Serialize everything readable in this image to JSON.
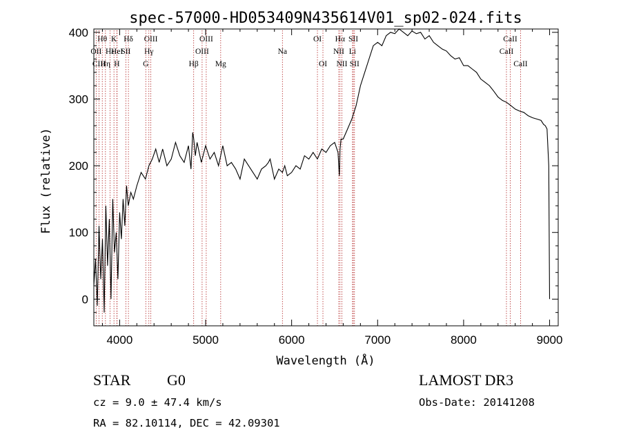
{
  "chart_data": {
    "type": "line",
    "title": "spec-57000-HD053409N435614V01_sp02-024.fits",
    "xlabel": "Wavelength (Å)",
    "ylabel": "Flux (relative)",
    "xlim": [
      3700,
      9100
    ],
    "ylim": [
      -40,
      405
    ],
    "xticks": [
      4000,
      5000,
      6000,
      7000,
      8000,
      9000
    ],
    "yticks": [
      0,
      100,
      200,
      300,
      400
    ],
    "colors": {
      "spectrum": "#000000",
      "lines": "#b22222"
    },
    "series": [
      {
        "name": "flux",
        "x": [
          3700,
          3720,
          3740,
          3760,
          3780,
          3800,
          3820,
          3840,
          3860,
          3880,
          3900,
          3920,
          3940,
          3960,
          3980,
          4000,
          4020,
          4040,
          4060,
          4080,
          4100,
          4130,
          4160,
          4200,
          4250,
          4300,
          4340,
          4380,
          4420,
          4460,
          4500,
          4550,
          4600,
          4650,
          4700,
          4750,
          4800,
          4830,
          4850,
          4862,
          4880,
          4900,
          4950,
          5000,
          5050,
          5100,
          5150,
          5200,
          5250,
          5300,
          5350,
          5400,
          5450,
          5500,
          5550,
          5600,
          5650,
          5700,
          5730,
          5750,
          5800,
          5850,
          5893,
          5920,
          5950,
          6000,
          6050,
          6100,
          6150,
          6200,
          6250,
          6300,
          6350,
          6400,
          6450,
          6500,
          6540,
          6555,
          6563,
          6575,
          6600,
          6650,
          6700,
          6750,
          6800,
          6850,
          6900,
          6950,
          7000,
          7050,
          7100,
          7150,
          7200,
          7250,
          7300,
          7350,
          7400,
          7450,
          7500,
          7550,
          7600,
          7650,
          7700,
          7750,
          7800,
          7850,
          7900,
          7950,
          8000,
          8050,
          8100,
          8150,
          8200,
          8250,
          8300,
          8350,
          8400,
          8450,
          8500,
          8550,
          8600,
          8650,
          8700,
          8750,
          8800,
          8850,
          8900,
          8930,
          8950,
          8970,
          8990,
          9000
        ],
        "y": [
          20,
          60,
          -10,
          110,
          30,
          90,
          -20,
          140,
          50,
          120,
          0,
          150,
          70,
          100,
          30,
          130,
          90,
          150,
          110,
          170,
          140,
          160,
          150,
          170,
          190,
          180,
          200,
          210,
          225,
          205,
          225,
          200,
          210,
          235,
          215,
          205,
          230,
          195,
          250,
          240,
          215,
          235,
          205,
          230,
          210,
          220,
          200,
          230,
          200,
          205,
          195,
          180,
          210,
          200,
          190,
          180,
          195,
          200,
          205,
          210,
          180,
          195,
          190,
          200,
          185,
          190,
          200,
          195,
          215,
          210,
          220,
          210,
          225,
          220,
          230,
          235,
          220,
          185,
          225,
          240,
          240,
          255,
          270,
          290,
          320,
          340,
          360,
          380,
          385,
          380,
          395,
          400,
          398,
          405,
          400,
          395,
          402,
          398,
          400,
          390,
          395,
          385,
          380,
          375,
          372,
          365,
          360,
          362,
          350,
          350,
          345,
          340,
          330,
          325,
          320,
          312,
          303,
          298,
          295,
          290,
          285,
          282,
          280,
          275,
          272,
          270,
          268,
          262,
          260,
          255,
          200,
          0
        ]
      }
    ],
    "lines": [
      {
        "name": "Hθ",
        "wave": 3798,
        "row": 1
      },
      {
        "name": "OII",
        "wave": 3727,
        "row": 2
      },
      {
        "name": "CIII",
        "wave": 3760,
        "row": 3
      },
      {
        "name": "K",
        "wave": 3934,
        "row": 1
      },
      {
        "name": "Hε",
        "wave": 3889,
        "row": 2
      },
      {
        "name": "Hη",
        "wave": 3835,
        "row": 3
      },
      {
        "name": "HeI",
        "wave": 3970,
        "row": 2
      },
      {
        "name": "H",
        "wave": 3968,
        "row": 3
      },
      {
        "name": "SII",
        "wave": 4072,
        "row": 2
      },
      {
        "name": "Hδ",
        "wave": 4102,
        "row": 1
      },
      {
        "name": "OIII",
        "wave": 4363,
        "row": 1
      },
      {
        "name": "Hγ",
        "wave": 4340,
        "row": 2
      },
      {
        "name": "G",
        "wave": 4304,
        "row": 3
      },
      {
        "name": "Hβ",
        "wave": 4861,
        "row": 3
      },
      {
        "name": "OIII",
        "wave": 5007,
        "row": 1
      },
      {
        "name": "OIII",
        "wave": 4959,
        "row": 2
      },
      {
        "name": "Mg",
        "wave": 5175,
        "row": 3
      },
      {
        "name": "Na",
        "wave": 5893,
        "row": 2
      },
      {
        "name": "OI",
        "wave": 6300,
        "row": 1
      },
      {
        "name": "OI",
        "wave": 6364,
        "row": 3
      },
      {
        "name": "Hα",
        "wave": 6563,
        "row": 1
      },
      {
        "name": "NII",
        "wave": 6548,
        "row": 2
      },
      {
        "name": "NII",
        "wave": 6584,
        "row": 3
      },
      {
        "name": "SII",
        "wave": 6717,
        "row": 1
      },
      {
        "name": "Li",
        "wave": 6708,
        "row": 2
      },
      {
        "name": "SII",
        "wave": 6731,
        "row": 3
      },
      {
        "name": "CaII",
        "wave": 8542,
        "row": 1
      },
      {
        "name": "CaII",
        "wave": 8498,
        "row": 2
      },
      {
        "name": "CaII",
        "wave": 8662,
        "row": 3
      }
    ]
  },
  "info": {
    "object_type": "STAR",
    "subclass": "G0",
    "survey": "LAMOST DR3",
    "redshift": "cz = 9.0 ± 47.4 km/s",
    "obs_date": "Obs-Date: 20141208",
    "coords": "RA =  82.10114, DEC =  42.09301"
  }
}
